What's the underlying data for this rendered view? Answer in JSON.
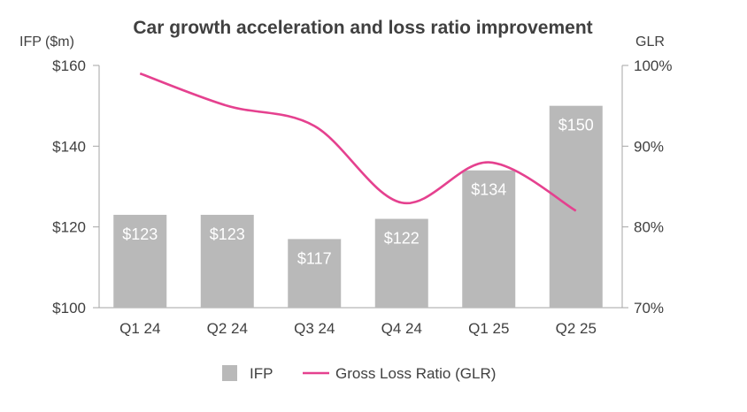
{
  "chart_data": {
    "type": "bar",
    "title": "Car growth acceleration and loss ratio improvement",
    "ylabel": "IFP ($m)",
    "y2label": "GLR",
    "categories": [
      "Q1 24",
      "Q2 24",
      "Q3 24",
      "Q4 24",
      "Q1 25",
      "Q2 25"
    ],
    "ylim": [
      100,
      160
    ],
    "yticks": [
      100,
      120,
      140,
      160
    ],
    "ytick_labels": [
      "$100",
      "$120",
      "$140",
      "$160"
    ],
    "y2lim": [
      70,
      100
    ],
    "y2ticks": [
      70,
      80,
      90,
      100
    ],
    "y2tick_labels": [
      "70%",
      "80%",
      "90%",
      "100%"
    ],
    "series": [
      {
        "name": "IFP",
        "type": "bar",
        "axis": "left",
        "values": [
          123,
          123,
          117,
          122,
          134,
          150
        ],
        "labels": [
          "$123",
          "$123",
          "$117",
          "$122",
          "$134",
          "$150"
        ],
        "color": "#b9b9b9"
      },
      {
        "name": "Gross Loss Ratio (GLR)",
        "type": "line",
        "axis": "right",
        "values": [
          99.0,
          95.0,
          92.5,
          83.0,
          88.0,
          82.0
        ],
        "color": "#e5418f"
      }
    ],
    "legend_position": "bottom-center",
    "grid": false
  }
}
